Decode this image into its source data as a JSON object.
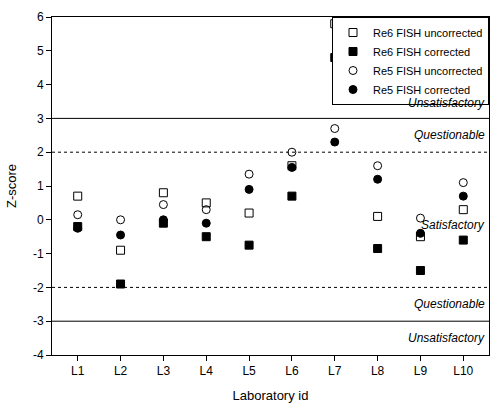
{
  "chart_data": {
    "type": "scatter",
    "x_label": "Laboratory id",
    "y_label": "Z-score",
    "categories": [
      "L1",
      "L2",
      "L3",
      "L4",
      "L5",
      "L6",
      "L7",
      "L8",
      "L9",
      "L10"
    ],
    "series": [
      {
        "name": "Re6 FISH uncorrected",
        "color": "#000000",
        "marker": "square-open",
        "values": [
          0.7,
          -0.9,
          0.8,
          0.5,
          0.2,
          1.6,
          5.8,
          0.1,
          -0.5,
          0.3
        ]
      },
      {
        "name": "Re6 FISH corrected",
        "color": "#000000",
        "marker": "square",
        "values": [
          -0.2,
          -1.9,
          -0.1,
          -0.5,
          -0.75,
          0.7,
          4.8,
          -0.85,
          -1.5,
          -0.6
        ]
      },
      {
        "name": "Re5 FISH uncorrected",
        "color": "#000000",
        "marker": "circle-open",
        "values": [
          0.15,
          0.0,
          0.45,
          0.3,
          1.35,
          2.0,
          2.7,
          1.6,
          0.05,
          1.1
        ]
      },
      {
        "name": "Re5 FISH corrected",
        "color": "#000000",
        "marker": "circle",
        "values": [
          -0.25,
          -0.45,
          0.0,
          -0.1,
          0.9,
          1.55,
          2.3,
          1.2,
          -0.4,
          0.7
        ]
      }
    ],
    "ylim": [
      -4,
      6
    ],
    "yticks": [
      -4,
      -3,
      -2,
      -1,
      0,
      1,
      2,
      3,
      4,
      5,
      6
    ],
    "grid": false,
    "legend": "top right",
    "thresholds": [
      {
        "value": 3,
        "line_style": "solid"
      },
      {
        "value": 2,
        "line_style": "dotted"
      },
      {
        "value": -2,
        "line_style": "dotted"
      },
      {
        "value": -3,
        "line_style": "solid"
      }
    ],
    "annotations": [
      {
        "text": "Unsatisfactory",
        "y": 3.45
      },
      {
        "text": "Questionable",
        "y": 2.5
      },
      {
        "text": "Satisfactory",
        "y": -0.15
      },
      {
        "text": "Questionable",
        "y": -2.5
      },
      {
        "text": "Unsatisfactory",
        "y": -3.5
      }
    ]
  }
}
